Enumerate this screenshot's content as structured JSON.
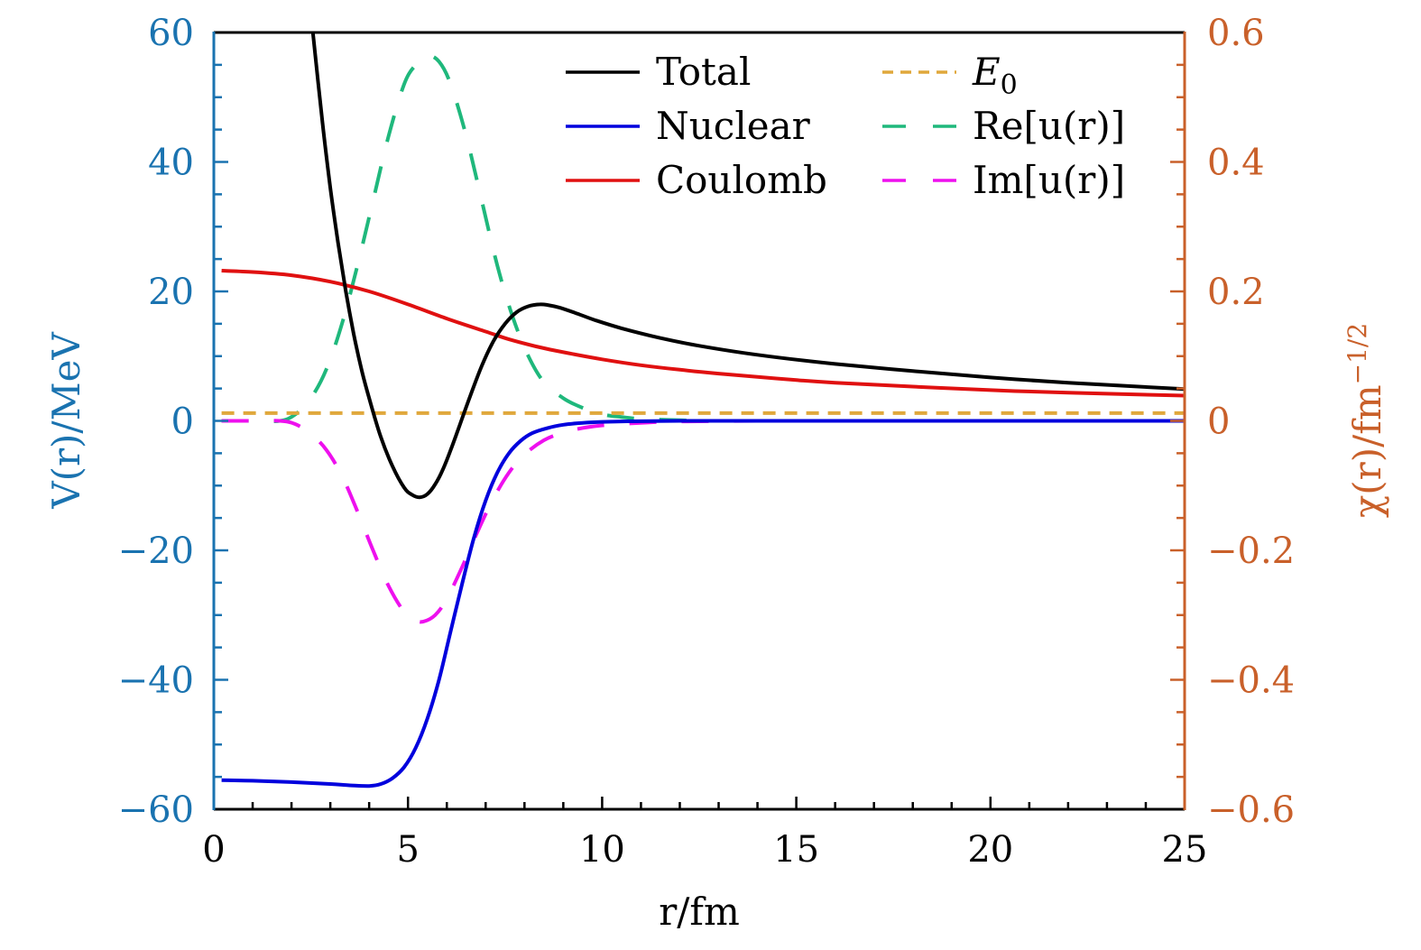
{
  "chart_data": {
    "type": "line",
    "title": "",
    "xlabel": "r/fm",
    "ylabel_left": "V(r)/MeV",
    "ylabel_right": "χ(r)/fm^−1/2",
    "ylabel_right_base": "χ(r)/fm",
    "ylabel_right_exp": "−1/2",
    "xlim": [
      0,
      25
    ],
    "ylim_left": [
      -60,
      60
    ],
    "ylim_right": [
      -0.6,
      0.6
    ],
    "x_ticks": [
      "0",
      "5",
      "10",
      "15",
      "20",
      "25"
    ],
    "x_tick_values": [
      0,
      5,
      10,
      15,
      20,
      25
    ],
    "y_left_ticks": [
      "60",
      "40",
      "20",
      "0",
      "−20",
      "−40",
      "−60"
    ],
    "y_left_tick_values": [
      60,
      40,
      20,
      0,
      -20,
      -40,
      -60
    ],
    "y_right_ticks": [
      "0.6",
      "0.4",
      "0.2",
      "0",
      "−0.2",
      "−0.4",
      "−0.6"
    ],
    "y_right_tick_values": [
      0.6,
      0.4,
      0.2,
      0,
      -0.2,
      -0.4,
      -0.6
    ],
    "grid": false,
    "legend_position": "top-right",
    "colors": {
      "left_axis": "#1a73b0",
      "right_axis": "#c9602a"
    },
    "series": [
      {
        "name": "Total",
        "axis": "left",
        "color": "#000000",
        "style": "solid",
        "x": [
          2.55,
          2.8,
          3.0,
          3.2,
          3.4,
          3.6,
          3.8,
          4.0,
          4.3,
          4.6,
          4.9,
          5.1,
          5.3,
          5.5,
          5.7,
          5.9,
          6.1,
          6.3,
          6.6,
          6.9,
          7.2,
          7.5,
          7.8,
          8.1,
          8.4,
          8.6,
          8.9,
          9.3,
          9.8,
          10.5,
          11.5,
          12.5,
          14,
          16,
          18,
          20,
          22,
          25
        ],
        "y": [
          60,
          46,
          36,
          27.5,
          20,
          13.5,
          8,
          3.5,
          -2.5,
          -7,
          -10.3,
          -11.4,
          -11.8,
          -11.3,
          -9.8,
          -7.5,
          -4.5,
          -1.2,
          3.8,
          8.5,
          12.3,
          15,
          16.8,
          17.7,
          18,
          17.9,
          17.5,
          16.7,
          15.6,
          14.3,
          12.8,
          11.6,
          10.2,
          8.8,
          7.7,
          6.7,
          5.9,
          4.9
        ]
      },
      {
        "name": "Nuclear",
        "axis": "left",
        "color": "#0000dd",
        "style": "solid",
        "x": [
          0.2,
          1,
          2,
          3,
          3.5,
          4,
          4.3,
          4.6,
          4.9,
          5.2,
          5.5,
          5.8,
          6.1,
          6.4,
          6.7,
          7.0,
          7.3,
          7.6,
          7.9,
          8.2,
          8.6,
          9.0,
          9.5,
          10,
          11,
          12,
          14,
          17,
          20,
          25
        ],
        "y": [
          -55.5,
          -55.6,
          -55.8,
          -56.1,
          -56.3,
          -56.4,
          -56.1,
          -55.2,
          -53.5,
          -50.5,
          -46,
          -40,
          -32.5,
          -25,
          -18,
          -12.3,
          -8,
          -5,
          -3.1,
          -1.9,
          -1.1,
          -0.6,
          -0.3,
          -0.15,
          -0.05,
          0,
          0,
          0,
          0,
          0
        ]
      },
      {
        "name": "Coulomb",
        "axis": "left",
        "color": "#e01010",
        "style": "solid",
        "x": [
          0.2,
          1,
          2,
          3,
          4,
          5,
          6,
          7,
          7.6,
          8.3,
          9,
          10,
          11,
          12,
          13,
          14,
          15,
          16,
          18,
          20,
          22,
          25
        ],
        "y": [
          23.2,
          23.0,
          22.5,
          21.5,
          20.0,
          18.0,
          15.8,
          13.8,
          12.6,
          11.5,
          10.6,
          9.5,
          8.6,
          7.9,
          7.3,
          6.8,
          6.3,
          5.9,
          5.3,
          4.75,
          4.35,
          3.9
        ]
      },
      {
        "name": "E_0",
        "axis": "left",
        "color": "#e0a83c",
        "style": "dashed",
        "x": [
          0.2,
          25
        ],
        "y": [
          1.2,
          1.2
        ]
      },
      {
        "name": "Re[u(r)]",
        "axis": "right",
        "color": "#1fb87c",
        "style": "longdash",
        "x": [
          0.2,
          1,
          1.7,
          2.1,
          2.5,
          2.9,
          3.3,
          3.7,
          4.1,
          4.5,
          4.9,
          5.2,
          5.5,
          5.8,
          6.1,
          6.5,
          6.9,
          7.3,
          7.7,
          8.1,
          8.5,
          9.0,
          9.5,
          10.0,
          10.5,
          11,
          12,
          13,
          15,
          18,
          25
        ],
        "y": [
          0,
          0,
          0,
          0.01,
          0.035,
          0.08,
          0.15,
          0.24,
          0.34,
          0.44,
          0.52,
          0.55,
          0.564,
          0.555,
          0.52,
          0.44,
          0.34,
          0.24,
          0.16,
          0.1,
          0.06,
          0.035,
          0.02,
          0.01,
          0.006,
          0.003,
          0.001,
          0,
          0,
          0,
          0
        ]
      },
      {
        "name": "Im[u(r)]",
        "axis": "right",
        "color": "#ee10ee",
        "style": "longdash",
        "x": [
          0.2,
          1,
          1.7,
          2.1,
          2.5,
          2.9,
          3.3,
          3.7,
          4.1,
          4.5,
          4.9,
          5.2,
          5.4,
          5.7,
          6.0,
          6.4,
          6.8,
          7.2,
          7.6,
          8.0,
          8.5,
          9.0,
          9.5,
          10,
          11,
          12,
          14,
          17,
          25
        ],
        "y": [
          0,
          0,
          0,
          -0.005,
          -0.02,
          -0.045,
          -0.085,
          -0.14,
          -0.2,
          -0.255,
          -0.295,
          -0.308,
          -0.31,
          -0.3,
          -0.275,
          -0.225,
          -0.17,
          -0.12,
          -0.08,
          -0.052,
          -0.03,
          -0.018,
          -0.011,
          -0.007,
          -0.003,
          -0.001,
          0,
          0,
          0
        ]
      }
    ],
    "legend": [
      {
        "label": "Total",
        "series": 0
      },
      {
        "label": "Nuclear",
        "series": 1
      },
      {
        "label": "Coulomb",
        "series": 2
      },
      {
        "label": "E",
        "sub": "0",
        "series": 3
      },
      {
        "label": "Re[u(r)]",
        "series": 4
      },
      {
        "label": "Im[u(r)]",
        "series": 5
      }
    ]
  }
}
